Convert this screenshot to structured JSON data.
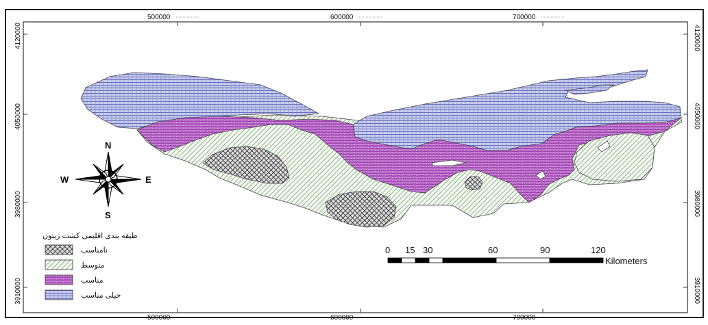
{
  "map": {
    "grid_x_labels": [
      "500000",
      "600000",
      "700000"
    ],
    "grid_y_labels": [
      "4120000",
      "4050000",
      "3980000",
      "3910000"
    ],
    "compass": {
      "north": "N",
      "south": "S",
      "east": "E",
      "west": "W"
    },
    "legend": {
      "title": "طبقه بندی اقلیمی کشت زیتون",
      "items": [
        {
          "label": "نامناسب",
          "pattern": "crosshatch",
          "color": "#ffffff"
        },
        {
          "label": "متوسط",
          "pattern": "diagonal-lines",
          "color": "#9bc49b"
        },
        {
          "label": "مناسب",
          "pattern": "dense-dots",
          "color": "#b45cc4"
        },
        {
          "label": "خیلی مناسب",
          "pattern": "grid-lines",
          "color": "#aeb5e8"
        }
      ]
    },
    "scale_bar": {
      "ticks": [
        "0",
        "15",
        "30",
        "60",
        "90",
        "120"
      ],
      "unit": "Kilometers"
    }
  }
}
